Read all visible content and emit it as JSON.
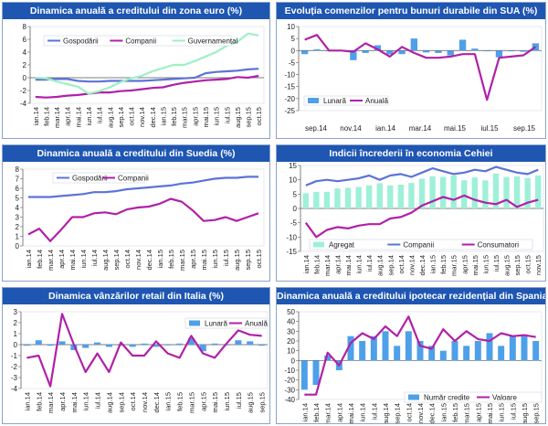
{
  "chart_data": [
    {
      "type": "line",
      "title": "Dinamica anuală a creditului din zona euro (%)",
      "categories": [
        "ian.14",
        "feb.14",
        "mar.14",
        "apr.14",
        "mai.14",
        "iun.14",
        "iul.14",
        "aug.14",
        "sep.14",
        "oct.14",
        "nov.14",
        "dec.14",
        "ian.15",
        "feb.15",
        "mar.15",
        "apr.15",
        "mai.15",
        "iun.15",
        "iul.15",
        "aug.15",
        "sep.15",
        "oct.15"
      ],
      "ylim": [
        -4,
        8
      ],
      "yticks": [
        -4,
        -2,
        0,
        2,
        4,
        6,
        8
      ],
      "legend_position": "top",
      "series": [
        {
          "name": "Gospodării",
          "color": "#5b73d9",
          "values": [
            -0.3,
            -0.3,
            -0.2,
            -0.2,
            -0.5,
            -0.6,
            -0.6,
            -0.5,
            -0.5,
            -0.5,
            -0.5,
            -0.4,
            -0.3,
            -0.2,
            -0.1,
            0.0,
            0.7,
            0.9,
            1.0,
            1.1,
            1.3,
            1.4
          ]
        },
        {
          "name": "Companii",
          "color": "#b021a8",
          "values": [
            -3.0,
            -3.1,
            -3.0,
            -2.8,
            -2.7,
            -2.5,
            -2.3,
            -2.3,
            -2.1,
            -2.0,
            -1.8,
            -1.6,
            -1.5,
            -1.1,
            -0.8,
            -0.6,
            -0.4,
            -0.3,
            -0.2,
            0.1,
            0.0,
            0.3
          ]
        },
        {
          "name": "Guvernamental",
          "color": "#9ef0c4",
          "values": [
            0.0,
            -0.1,
            -0.6,
            -1.0,
            -1.4,
            -2.5,
            -2.1,
            -1.5,
            -0.7,
            -0.1,
            0.3,
            1.0,
            1.5,
            2.0,
            2.0,
            2.6,
            3.3,
            4.0,
            5.0,
            5.6,
            6.9,
            6.6
          ]
        }
      ]
    },
    {
      "type": "bar+line",
      "title": "Evoluția comenzilor pentru bunuri durabile din SUA (%)",
      "tick_labels": [
        "sep.14",
        "nov.14",
        "ian.14",
        "mar.14",
        "mai.15",
        "iul.15",
        "sep.15"
      ],
      "ylim": [
        -25,
        10
      ],
      "yticks": [
        -25,
        -20,
        -15,
        -10,
        -5,
        0,
        5,
        10
      ],
      "legend_position": "bottom-left",
      "series": [
        {
          "name": "Lunară",
          "kind": "bar",
          "color": "#4ea0e8",
          "values": [
            -1.5,
            0.5,
            0.0,
            0.1,
            -4.0,
            -1.0,
            2.2,
            -1.6,
            -1.5,
            5.0,
            -0.8,
            -1.0,
            -2.0,
            4.5,
            0.8,
            -0.2,
            -2.8,
            -0.1,
            -0.5,
            3.0
          ]
        },
        {
          "name": "Anuală",
          "kind": "line",
          "color": "#b021a8",
          "values": [
            4.5,
            6.5,
            0.0,
            0.0,
            -0.5,
            3.0,
            0.5,
            -2.5,
            1.5,
            -1.0,
            -3.0,
            -3.0,
            -2.5,
            -1.5,
            -1.5,
            -20.5,
            -3.0,
            -2.5,
            -2.0,
            1.5
          ]
        }
      ]
    },
    {
      "type": "line",
      "title": "Dinamica anuală a creditului din Suedia (%)",
      "categories": [
        "ian.14",
        "feb.14",
        "mar.14",
        "apr.14",
        "mai.14",
        "iun.14",
        "iul.14",
        "aug.14",
        "sep.14",
        "oct.14",
        "nov.14",
        "dec.14",
        "ian.15",
        "feb.15",
        "mar.15",
        "apr.15",
        "mai.15",
        "iun.15",
        "iul.15",
        "aug.15",
        "sep.15",
        "oct.15"
      ],
      "ylim": [
        0,
        8
      ],
      "yticks": [
        0,
        1,
        2,
        3,
        4,
        5,
        6,
        7,
        8
      ],
      "legend_position": "top",
      "series": [
        {
          "name": "Gospodării",
          "color": "#5b73d9",
          "values": [
            5.1,
            5.1,
            5.1,
            5.2,
            5.3,
            5.4,
            5.6,
            5.6,
            5.7,
            5.9,
            6.0,
            6.1,
            6.2,
            6.3,
            6.5,
            6.6,
            6.8,
            7.0,
            7.1,
            7.1,
            7.2,
            7.2
          ]
        },
        {
          "name": "Companii",
          "color": "#b021a8",
          "values": [
            1.2,
            1.8,
            0.5,
            1.7,
            3.0,
            3.0,
            3.4,
            3.5,
            3.3,
            3.8,
            4.0,
            4.1,
            4.4,
            4.9,
            4.6,
            3.7,
            2.6,
            2.7,
            3.0,
            2.6,
            3.0,
            3.4
          ]
        }
      ]
    },
    {
      "type": "bar+line",
      "title": "Indicii încrederii în economia Cehiei",
      "categories": [
        "ian.14",
        "feb.14",
        "mar.14",
        "apr.14",
        "mai.14",
        "iun.14",
        "iul.14",
        "aug.14",
        "sep.14",
        "oct.14",
        "nov.14",
        "dec.14",
        "ian.15",
        "feb.15",
        "mar.15",
        "apr.15",
        "mai.15",
        "iun.15",
        "iul.15",
        "aug.15",
        "sep.15",
        "oct.15",
        "nov.15"
      ],
      "ylim": [
        -15,
        15
      ],
      "yticks": [
        -15,
        -10,
        -5,
        0,
        5,
        10,
        15
      ],
      "legend_position": "bottom",
      "series": [
        {
          "name": "Agregat",
          "kind": "bar",
          "color": "#9ef0d8",
          "values": [
            5.3,
            5.8,
            5.8,
            7.0,
            7.2,
            7.5,
            8.0,
            8.8,
            8.0,
            8.3,
            8.9,
            10.4,
            11.2,
            11.0,
            11.5,
            9.8,
            10.8,
            9.8,
            12.2,
            11.0,
            11.2,
            10.6,
            11.5
          ]
        },
        {
          "name": "Companii",
          "kind": "line",
          "color": "#5b73d9",
          "values": [
            8.0,
            9.5,
            10.0,
            9.5,
            10.0,
            10.5,
            11.5,
            10.0,
            11.5,
            12.0,
            11.0,
            12.5,
            14.0,
            13.0,
            12.0,
            12.5,
            13.5,
            13.0,
            14.5,
            13.5,
            12.5,
            12.0,
            13.5
          ]
        },
        {
          "name": "Consumatori",
          "kind": "line",
          "color": "#b021a8",
          "values": [
            -5.0,
            -10.0,
            -7.5,
            -6.5,
            -7.0,
            -6.0,
            -5.5,
            -5.5,
            -3.5,
            -3.0,
            -1.5,
            1.0,
            2.5,
            4.0,
            3.0,
            4.5,
            3.0,
            2.0,
            1.5,
            3.0,
            0.5,
            2.0,
            3.0
          ]
        }
      ]
    },
    {
      "type": "bar+line",
      "title": "Dinamica vânzărilor retail din Italia (%)",
      "categories": [
        "ian.14",
        "feb.14",
        "mar.14",
        "apr.14",
        "mai.14",
        "iun.14",
        "iul.14",
        "aug.14",
        "sep.14",
        "oct.14",
        "nov.14",
        "dec.14",
        "ian.15",
        "feb.15",
        "mar.15",
        "apr.15",
        "mai.15",
        "iun.15",
        "iul.15",
        "aug.15",
        "sep.15"
      ],
      "ylim": [
        -4,
        3
      ],
      "yticks": [
        -4,
        -3,
        -2,
        -1,
        0,
        1,
        2,
        3
      ],
      "legend_position": "top-right",
      "series": [
        {
          "name": "Lunară",
          "kind": "bar",
          "color": "#4ea0e8",
          "values": [
            -0.1,
            0.4,
            -0.1,
            0.3,
            -0.5,
            -0.3,
            0.2,
            -0.2,
            -0.1,
            -0.2,
            0.1,
            -0.2,
            0.0,
            0.1,
            0.6,
            -0.6,
            0.1,
            0.0,
            0.4,
            0.3,
            -0.1
          ]
        },
        {
          "name": "Anuală",
          "kind": "line",
          "color": "#b021a8",
          "values": [
            -1.2,
            -1.0,
            -3.8,
            2.8,
            0.0,
            -2.5,
            -0.8,
            -2.5,
            0.2,
            -1.0,
            -1.0,
            0.3,
            -0.8,
            -1.2,
            0.8,
            -0.8,
            -1.2,
            0.1,
            1.3,
            0.9,
            0.8
          ]
        }
      ]
    },
    {
      "type": "bar+line",
      "title": "Dinamica anuală a creditului ipotecar rezidențial din Spania (%)",
      "categories": [
        "ian.14",
        "feb.14",
        "mar.14",
        "apr.14",
        "mai.14",
        "iun.14",
        "iul.14",
        "aug.14",
        "sep.14",
        "oct.14",
        "nov.14",
        "dec.14",
        "ian.15",
        "feb.15",
        "mar.15",
        "apr.15",
        "mai.15",
        "iun.15",
        "iul.15",
        "aug.15",
        "sep.15"
      ],
      "ylim": [
        -40,
        50
      ],
      "yticks": [
        -40,
        -30,
        -20,
        -10,
        0,
        10,
        20,
        30,
        40,
        50
      ],
      "legend_position": "bottom",
      "series": [
        {
          "name": "Număr credite",
          "kind": "bar",
          "color": "#4ea0e8",
          "values": [
            -30,
            -25,
            5,
            -10,
            25,
            20,
            25,
            30,
            15,
            30,
            20,
            15,
            10,
            20,
            15,
            20,
            28,
            15,
            25,
            25,
            20
          ]
        },
        {
          "name": "Valoare",
          "kind": "line",
          "color": "#b021a8",
          "values": [
            -35,
            -35,
            8,
            -5,
            18,
            28,
            22,
            35,
            25,
            45,
            15,
            12,
            32,
            20,
            30,
            22,
            20,
            28,
            25,
            26,
            24
          ]
        }
      ]
    }
  ]
}
